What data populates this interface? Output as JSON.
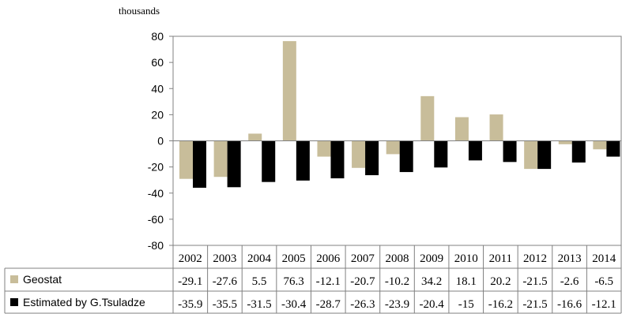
{
  "unit_label": "thousands",
  "chart_data": {
    "type": "bar",
    "categories": [
      "2002",
      "2003",
      "2004",
      "2005",
      "2006",
      "2007",
      "2008",
      "2009",
      "2010",
      "2011",
      "2012",
      "2013",
      "2014"
    ],
    "series": [
      {
        "name": "Geostat",
        "color": "#c8bd9a",
        "values": [
          -29.1,
          -27.6,
          5.5,
          76.3,
          -12.1,
          -20.7,
          -10.2,
          34.2,
          18.1,
          20.2,
          -21.5,
          -2.6,
          -6.5
        ],
        "labels": [
          "-29.1",
          "-27.6",
          "5.5",
          "76.3",
          "-12.1",
          "-20.7",
          "-10.2",
          "34.2",
          "18.1",
          "20.2",
          "-21.5",
          "-2.6",
          "-6.5"
        ]
      },
      {
        "name": "Estimated by G.Tsuladze",
        "color": "#000000",
        "values": [
          -35.9,
          -35.5,
          -31.5,
          -30.4,
          -28.7,
          -26.3,
          -23.9,
          -20.4,
          -15,
          -16.2,
          -21.5,
          -16.6,
          -12.1
        ],
        "labels": [
          "-35.9",
          "-35.5",
          "-31.5",
          "-30.4",
          "-28.7",
          "-26.3",
          "-23.9",
          "-20.4",
          "-15",
          "-16.2",
          "-21.5",
          "-16.6",
          "-12.1"
        ]
      }
    ],
    "ylim": [
      -80,
      80
    ],
    "yticks": [
      "80",
      "60",
      "40",
      "20",
      "0",
      "-20",
      "-40",
      "-60",
      "-80"
    ],
    "ytick_values": [
      80,
      60,
      40,
      20,
      0,
      -20,
      -40,
      -60,
      -80
    ],
    "grid": false,
    "legend": "data-table"
  }
}
